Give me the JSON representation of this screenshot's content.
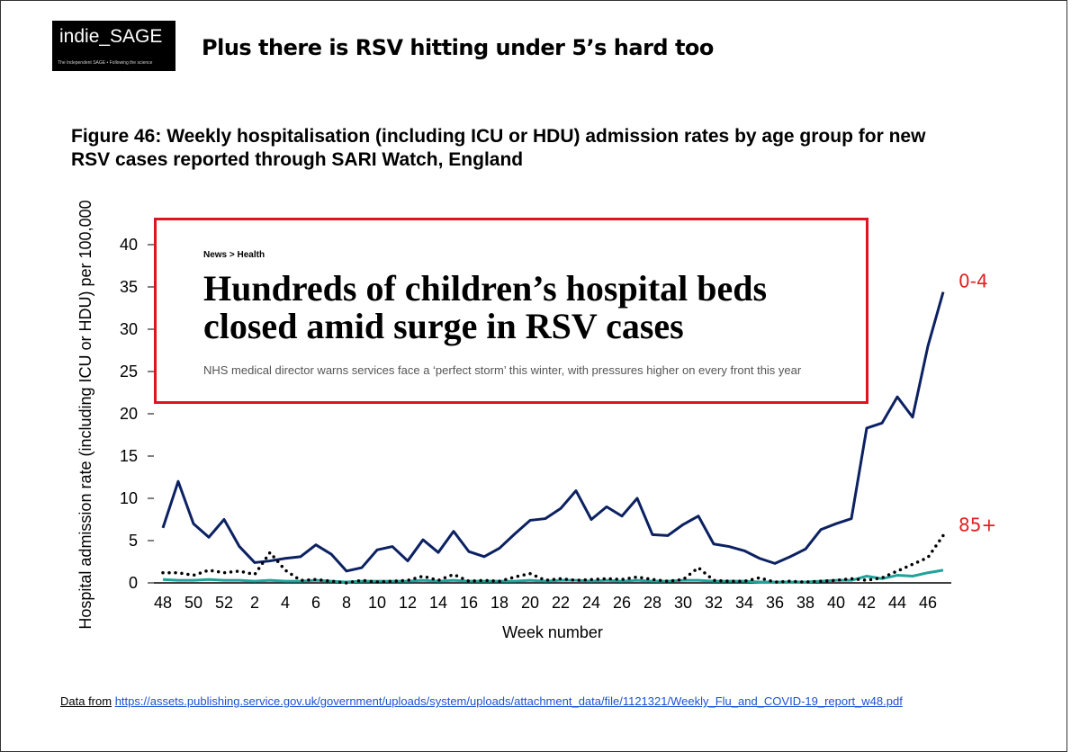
{
  "header": {
    "logo": "indie_SAGE",
    "logo_tagline": "The Independent SAGE • Following the science",
    "title": "Plus there is RSV hitting under 5’s hard too"
  },
  "chart_data": {
    "type": "line",
    "title": "Figure 46: Weekly hospitalisation (including ICU or HDU) admission rates by age group for new RSV cases reported through SARI Watch, England",
    "y_label": "Hospital admission rate (including ICU or HDU) per 100,000",
    "x_label": "Week number",
    "categories": [
      48,
      null,
      50,
      null,
      52,
      null,
      2,
      null,
      4,
      null,
      6,
      null,
      8,
      null,
      10,
      null,
      12,
      null,
      14,
      null,
      16,
      null,
      18,
      null,
      20,
      null,
      22,
      null,
      24,
      null,
      26,
      null,
      28,
      null,
      30,
      null,
      32,
      null,
      34,
      null,
      36,
      null,
      38,
      null,
      40,
      null,
      42,
      null,
      44,
      null,
      46,
      null
    ],
    "ylim": [
      0,
      40
    ],
    "yticks": [
      0,
      5,
      10,
      15,
      20,
      25,
      30,
      35,
      40
    ],
    "series": [
      {
        "color": "#1fa39a",
        "line_style": "solid",
        "values": [
          0.4,
          0.3,
          0.3,
          0.4,
          0.3,
          0.3,
          0.2,
          0.3,
          0.2,
          0.2,
          0.3,
          0.2,
          0.1,
          0.2,
          0.2,
          0.2,
          0.2,
          0.3,
          0.2,
          0.3,
          0.2,
          0.2,
          0.2,
          0.2,
          0.3,
          0.2,
          0.3,
          0.3,
          0.2,
          0.3,
          0.2,
          0.3,
          0.2,
          0.2,
          0.3,
          0.3,
          0.2,
          0.2,
          0.2,
          0.1,
          0.1,
          0.1,
          0.1,
          0.2,
          0.3,
          0.3,
          0.8,
          0.5,
          0.9,
          0.8,
          1.2,
          1.5
        ]
      },
      {
        "name": "0-4",
        "color": "#0b2161",
        "line_style": "solid",
        "values": [
          6.5,
          12,
          7,
          5.4,
          7.5,
          4.3,
          2.4,
          2.6,
          2.9,
          3.1,
          4.5,
          3.4,
          1.4,
          1.8,
          3.9,
          4.3,
          2.6,
          5.1,
          3.6,
          6.1,
          3.7,
          3.1,
          4.1,
          5.8,
          7.4,
          7.6,
          8.8,
          10.9,
          7.5,
          9,
          7.9,
          10,
          5.7,
          5.6,
          6.9,
          7.9,
          4.6,
          4.3,
          3.8,
          2.9,
          2.3,
          3.1,
          4,
          6.3,
          7,
          7.6,
          18.3,
          18.9,
          22,
          19.6,
          28,
          34.4
        ]
      },
      {
        "name": "85+",
        "color": "#000000",
        "line_style": "dotted",
        "values": [
          1.2,
          1.2,
          0.9,
          1.5,
          1.2,
          1.4,
          1,
          3.6,
          1.5,
          0.3,
          0.4,
          0.2,
          0,
          0.3,
          0.1,
          0.2,
          0.3,
          0.8,
          0.3,
          1,
          0.2,
          0.3,
          0.2,
          0.7,
          1.1,
          0.3,
          0.5,
          0.3,
          0.4,
          0.5,
          0.4,
          0.7,
          0.4,
          0.2,
          0.4,
          1.8,
          0.3,
          0.2,
          0.2,
          0.6,
          0.1,
          0.2,
          0.1,
          0.2,
          0.3,
          0.5,
          0.3,
          0.6,
          1.4,
          2.2,
          3,
          5.6
        ]
      }
    ],
    "label_color": "#e02020"
  },
  "news": {
    "breadcrumb": "News > Health",
    "headline": "Hundreds of children’s hospital beds closed amid surge in RSV cases",
    "standfirst": "NHS medical director warns services face a ‘perfect storm’ this winter, with pressures higher on every front this year"
  },
  "source": {
    "prefix": "Data from",
    "url": "https://assets.publishing.service.gov.uk/government/uploads/system/uploads/attachment_data/file/1121321/Weekly_Flu_and_COVID-19_report_w48.pdf"
  }
}
